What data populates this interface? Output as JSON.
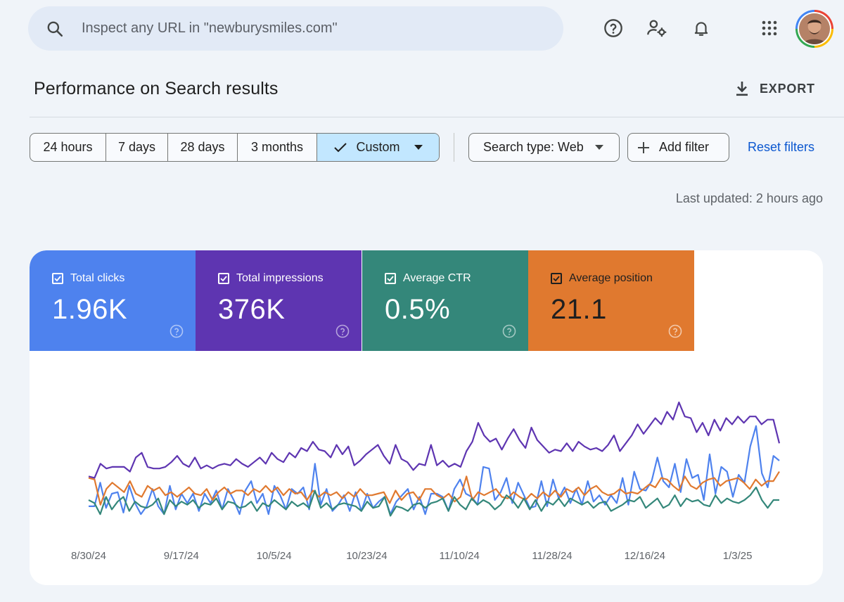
{
  "search": {
    "placeholder": "Inspect any URL in \"newburysmiles.com\""
  },
  "topbar": {
    "icons": [
      "help-icon",
      "manage-users-icon",
      "notifications-icon",
      "apps-grid-icon"
    ],
    "avatar": "user-avatar"
  },
  "header": {
    "title": "Performance on Search results",
    "export_label": "EXPORT"
  },
  "filters": {
    "ranges": [
      "24 hours",
      "7 days",
      "28 days",
      "3 months",
      "Custom"
    ],
    "selected_range": "Custom",
    "search_type": "Search type: Web",
    "add_filter": "Add filter",
    "reset": "Reset filters"
  },
  "status": {
    "last_updated": "Last updated: 2 hours ago"
  },
  "metrics": [
    {
      "label": "Total clicks",
      "value": "1.96K",
      "color": "#4e82ee"
    },
    {
      "label": "Total impressions",
      "value": "376K",
      "color": "#5e35b1"
    },
    {
      "label": "Average CTR",
      "value": "0.5%",
      "color": "#34877a"
    },
    {
      "label": "Average position",
      "value": "21.1",
      "color": "#e0792f"
    }
  ],
  "chart_data": {
    "type": "line",
    "x_ticks": [
      "8/30/24",
      "9/17/24",
      "10/5/24",
      "10/23/24",
      "11/10/24",
      "11/28/24",
      "12/16/24",
      "1/3/25"
    ],
    "ylim": [
      0,
      1
    ],
    "grid": false,
    "series": [
      {
        "name": "Total impressions",
        "color": "#5e35b1",
        "values": [
          0.36,
          0.35,
          0.44,
          0.41,
          0.42,
          0.42,
          0.42,
          0.39,
          0.48,
          0.51,
          0.42,
          0.41,
          0.41,
          0.42,
          0.45,
          0.49,
          0.44,
          0.42,
          0.48,
          0.41,
          0.43,
          0.41,
          0.43,
          0.44,
          0.43,
          0.47,
          0.44,
          0.42,
          0.45,
          0.48,
          0.44,
          0.51,
          0.47,
          0.45,
          0.51,
          0.48,
          0.54,
          0.52,
          0.58,
          0.53,
          0.52,
          0.48,
          0.56,
          0.5,
          0.55,
          0.43,
          0.46,
          0.5,
          0.53,
          0.56,
          0.49,
          0.44,
          0.56,
          0.47,
          0.45,
          0.4,
          0.44,
          0.43,
          0.56,
          0.43,
          0.46,
          0.42,
          0.44,
          0.42,
          0.52,
          0.58,
          0.7,
          0.62,
          0.58,
          0.6,
          0.53,
          0.6,
          0.66,
          0.59,
          0.54,
          0.67,
          0.59,
          0.55,
          0.51,
          0.53,
          0.52,
          0.57,
          0.52,
          0.58,
          0.55,
          0.53,
          0.54,
          0.52,
          0.56,
          0.62,
          0.52,
          0.57,
          0.62,
          0.69,
          0.63,
          0.68,
          0.73,
          0.69,
          0.77,
          0.72,
          0.83,
          0.74,
          0.73,
          0.64,
          0.7,
          0.62,
          0.72,
          0.65,
          0.73,
          0.69,
          0.74,
          0.7,
          0.74,
          0.74,
          0.69,
          0.72,
          0.72,
          0.57
        ]
      },
      {
        "name": "Total clicks",
        "color": "#4e82ee",
        "values": [
          0.17,
          0.17,
          0.32,
          0.16,
          0.25,
          0.26,
          0.13,
          0.3,
          0.19,
          0.12,
          0.17,
          0.28,
          0.17,
          0.12,
          0.3,
          0.15,
          0.25,
          0.19,
          0.25,
          0.14,
          0.25,
          0.19,
          0.27,
          0.15,
          0.28,
          0.21,
          0.12,
          0.27,
          0.33,
          0.19,
          0.25,
          0.12,
          0.3,
          0.24,
          0.15,
          0.28,
          0.25,
          0.29,
          0.15,
          0.44,
          0.18,
          0.28,
          0.14,
          0.18,
          0.24,
          0.14,
          0.26,
          0.14,
          0.25,
          0.16,
          0.2,
          0.23,
          0.12,
          0.2,
          0.24,
          0.28,
          0.15,
          0.23,
          0.12,
          0.25,
          0.25,
          0.23,
          0.14,
          0.28,
          0.34,
          0.25,
          0.23,
          0.18,
          0.42,
          0.41,
          0.21,
          0.26,
          0.35,
          0.19,
          0.32,
          0.24,
          0.16,
          0.17,
          0.33,
          0.17,
          0.34,
          0.22,
          0.29,
          0.19,
          0.28,
          0.18,
          0.33,
          0.2,
          0.24,
          0.18,
          0.24,
          0.19,
          0.35,
          0.18,
          0.39,
          0.28,
          0.27,
          0.33,
          0.48,
          0.33,
          0.29,
          0.44,
          0.26,
          0.47,
          0.35,
          0.37,
          0.21,
          0.5,
          0.25,
          0.42,
          0.39,
          0.23,
          0.37,
          0.32,
          0.55,
          0.68,
          0.38,
          0.29,
          0.49,
          0.46
        ]
      },
      {
        "name": "Average position",
        "color": "#e0792f",
        "values": [
          0.35,
          0.34,
          0.18,
          0.28,
          0.32,
          0.29,
          0.26,
          0.33,
          0.25,
          0.23,
          0.3,
          0.27,
          0.29,
          0.24,
          0.26,
          0.23,
          0.26,
          0.29,
          0.25,
          0.24,
          0.28,
          0.21,
          0.26,
          0.29,
          0.25,
          0.27,
          0.27,
          0.24,
          0.28,
          0.26,
          0.3,
          0.26,
          0.29,
          0.24,
          0.28,
          0.25,
          0.26,
          0.21,
          0.27,
          0.23,
          0.26,
          0.24,
          0.26,
          0.22,
          0.26,
          0.23,
          0.28,
          0.24,
          0.24,
          0.25,
          0.26,
          0.19,
          0.27,
          0.21,
          0.25,
          0.26,
          0.21,
          0.28,
          0.28,
          0.24,
          0.22,
          0.25,
          0.2,
          0.23,
          0.36,
          0.21,
          0.26,
          0.24,
          0.26,
          0.28,
          0.23,
          0.22,
          0.26,
          0.23,
          0.21,
          0.25,
          0.22,
          0.26,
          0.23,
          0.27,
          0.23,
          0.28,
          0.26,
          0.29,
          0.24,
          0.28,
          0.3,
          0.26,
          0.24,
          0.25,
          0.28,
          0.25,
          0.26,
          0.25,
          0.28,
          0.31,
          0.29,
          0.35,
          0.34,
          0.3,
          0.27,
          0.36,
          0.3,
          0.28,
          0.32,
          0.34,
          0.35,
          0.3,
          0.33,
          0.34,
          0.35,
          0.32,
          0.28,
          0.34,
          0.3,
          0.33,
          0.33,
          0.39
        ]
      },
      {
        "name": "Average CTR",
        "color": "#34877a",
        "values": [
          0.21,
          0.19,
          0.12,
          0.23,
          0.15,
          0.2,
          0.23,
          0.14,
          0.2,
          0.17,
          0.16,
          0.18,
          0.22,
          0.12,
          0.21,
          0.17,
          0.2,
          0.18,
          0.21,
          0.16,
          0.19,
          0.18,
          0.22,
          0.15,
          0.2,
          0.19,
          0.16,
          0.17,
          0.2,
          0.14,
          0.19,
          0.17,
          0.21,
          0.18,
          0.15,
          0.2,
          0.17,
          0.19,
          0.16,
          0.27,
          0.16,
          0.19,
          0.15,
          0.18,
          0.19,
          0.18,
          0.17,
          0.14,
          0.2,
          0.16,
          0.17,
          0.23,
          0.11,
          0.17,
          0.16,
          0.14,
          0.18,
          0.19,
          0.16,
          0.19,
          0.2,
          0.22,
          0.14,
          0.23,
          0.18,
          0.15,
          0.22,
          0.18,
          0.21,
          0.19,
          0.15,
          0.18,
          0.24,
          0.21,
          0.16,
          0.22,
          0.15,
          0.21,
          0.14,
          0.2,
          0.18,
          0.22,
          0.17,
          0.22,
          0.2,
          0.18,
          0.2,
          0.16,
          0.19,
          0.2,
          0.14,
          0.16,
          0.18,
          0.21,
          0.2,
          0.23,
          0.16,
          0.19,
          0.22,
          0.16,
          0.18,
          0.24,
          0.17,
          0.22,
          0.2,
          0.21,
          0.18,
          0.17,
          0.24,
          0.19,
          0.22,
          0.2,
          0.19,
          0.21,
          0.24,
          0.29,
          0.21,
          0.16,
          0.21,
          0.21
        ]
      }
    ]
  }
}
